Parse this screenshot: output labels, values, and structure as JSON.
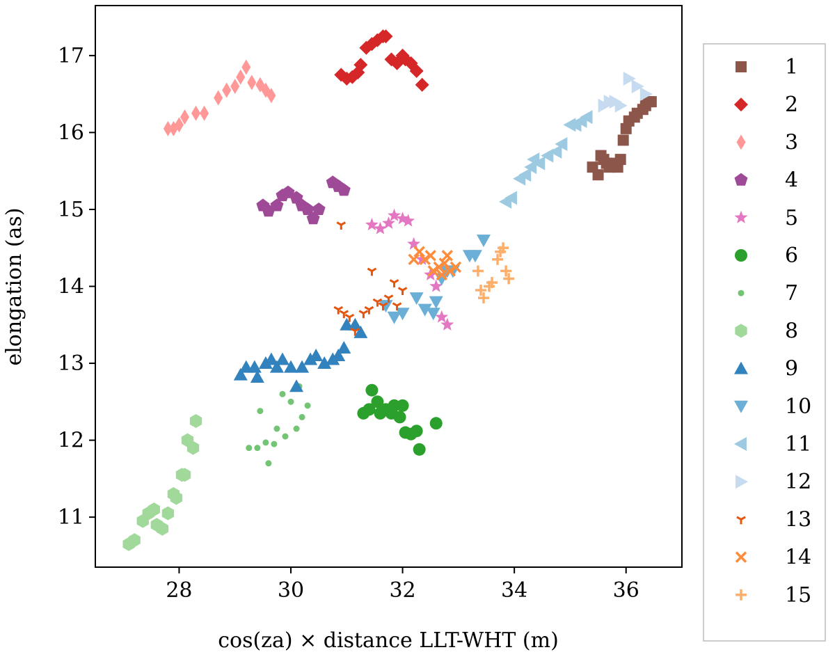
{
  "chart_data": {
    "type": "scatter",
    "title": "",
    "xlabel": "cos(za) × distance LLT-WHT (m)",
    "ylabel": "elongation (as)",
    "xlim": [
      26.5,
      37.0
    ],
    "ylim": [
      10.35,
      17.65
    ],
    "xticks": [
      "28",
      "30",
      "32",
      "34",
      "36"
    ],
    "yticks": [
      "11",
      "12",
      "13",
      "14",
      "15",
      "16",
      "17"
    ],
    "legend_position": "right-outside",
    "series": [
      {
        "name": "1",
        "marker": "square",
        "color": "#8c564b",
        "points": [
          [
            35.4,
            15.55
          ],
          [
            35.5,
            15.45
          ],
          [
            35.55,
            15.7
          ],
          [
            35.6,
            15.65
          ],
          [
            35.65,
            15.6
          ],
          [
            35.7,
            15.55
          ],
          [
            35.8,
            15.6
          ],
          [
            35.85,
            15.55
          ],
          [
            35.9,
            15.65
          ],
          [
            35.95,
            15.9
          ],
          [
            36.0,
            16.05
          ],
          [
            36.05,
            16.15
          ],
          [
            36.15,
            16.2
          ],
          [
            36.2,
            16.25
          ],
          [
            36.3,
            16.3
          ],
          [
            36.35,
            16.35
          ],
          [
            36.4,
            16.4
          ],
          [
            36.45,
            16.4
          ]
        ]
      },
      {
        "name": "2",
        "marker": "diamond",
        "color": "#d62728",
        "points": [
          [
            30.9,
            16.75
          ],
          [
            31.0,
            16.7
          ],
          [
            31.1,
            16.72
          ],
          [
            31.2,
            16.78
          ],
          [
            31.25,
            16.88
          ],
          [
            31.35,
            17.1
          ],
          [
            31.45,
            17.15
          ],
          [
            31.55,
            17.2
          ],
          [
            31.65,
            17.25
          ],
          [
            31.7,
            17.25
          ],
          [
            31.8,
            16.95
          ],
          [
            31.9,
            16.9
          ],
          [
            32.0,
            17.0
          ],
          [
            32.05,
            16.95
          ],
          [
            32.15,
            16.9
          ],
          [
            32.25,
            16.8
          ],
          [
            32.35,
            16.62
          ]
        ]
      },
      {
        "name": "3",
        "marker": "thin_diamond",
        "color": "#ff9896",
        "points": [
          [
            27.8,
            16.05
          ],
          [
            27.9,
            16.05
          ],
          [
            28.0,
            16.1
          ],
          [
            28.1,
            16.2
          ],
          [
            28.3,
            16.25
          ],
          [
            28.45,
            16.25
          ],
          [
            28.7,
            16.45
          ],
          [
            28.85,
            16.55
          ],
          [
            29.0,
            16.6
          ],
          [
            29.1,
            16.72
          ],
          [
            29.2,
            16.85
          ],
          [
            29.3,
            16.65
          ],
          [
            29.45,
            16.62
          ],
          [
            29.55,
            16.55
          ],
          [
            29.65,
            16.48
          ]
        ]
      },
      {
        "name": "4",
        "marker": "pentagon",
        "color": "#9e4a96",
        "points": [
          [
            29.5,
            15.05
          ],
          [
            29.6,
            14.98
          ],
          [
            29.75,
            15.05
          ],
          [
            29.85,
            15.18
          ],
          [
            29.95,
            15.22
          ],
          [
            30.1,
            15.15
          ],
          [
            30.2,
            15.05
          ],
          [
            30.3,
            15.0
          ],
          [
            30.4,
            14.88
          ],
          [
            30.5,
            15.0
          ],
          [
            30.75,
            15.35
          ],
          [
            30.85,
            15.3
          ],
          [
            30.95,
            15.25
          ]
        ]
      },
      {
        "name": "5",
        "marker": "star",
        "color": "#e377c2",
        "points": [
          [
            31.45,
            14.8
          ],
          [
            31.6,
            14.75
          ],
          [
            31.75,
            14.82
          ],
          [
            31.85,
            14.92
          ],
          [
            32.0,
            14.88
          ],
          [
            32.1,
            14.85
          ],
          [
            32.2,
            14.55
          ],
          [
            32.35,
            14.35
          ],
          [
            32.5,
            14.15
          ],
          [
            32.6,
            14.0
          ],
          [
            32.7,
            13.6
          ],
          [
            32.8,
            13.5
          ]
        ]
      },
      {
        "name": "6",
        "marker": "circle",
        "color": "#2ca02c",
        "points": [
          [
            31.3,
            12.35
          ],
          [
            31.4,
            12.4
          ],
          [
            31.45,
            12.65
          ],
          [
            31.55,
            12.5
          ],
          [
            31.6,
            12.35
          ],
          [
            31.7,
            12.4
          ],
          [
            31.8,
            12.35
          ],
          [
            31.85,
            12.45
          ],
          [
            31.95,
            12.3
          ],
          [
            32.0,
            12.45
          ],
          [
            32.05,
            12.1
          ],
          [
            32.15,
            12.08
          ],
          [
            32.25,
            12.12
          ],
          [
            32.3,
            11.88
          ],
          [
            32.6,
            12.22
          ]
        ]
      },
      {
        "name": "7",
        "marker": "point",
        "color": "#74c476",
        "points": [
          [
            29.25,
            11.9
          ],
          [
            29.4,
            11.9
          ],
          [
            29.45,
            12.38
          ],
          [
            29.55,
            11.97
          ],
          [
            29.6,
            11.7
          ],
          [
            29.7,
            11.95
          ],
          [
            29.75,
            12.15
          ],
          [
            29.85,
            12.6
          ],
          [
            29.9,
            12.05
          ],
          [
            30.0,
            12.5
          ],
          [
            30.1,
            12.15
          ],
          [
            30.15,
            12.7
          ],
          [
            30.2,
            12.3
          ],
          [
            30.3,
            12.45
          ]
        ]
      },
      {
        "name": "8",
        "marker": "hexagon",
        "color": "#a1d99b",
        "points": [
          [
            27.1,
            10.65
          ],
          [
            27.2,
            10.7
          ],
          [
            27.35,
            10.95
          ],
          [
            27.45,
            11.05
          ],
          [
            27.55,
            11.1
          ],
          [
            27.6,
            10.9
          ],
          [
            27.7,
            10.85
          ],
          [
            27.8,
            11.05
          ],
          [
            27.9,
            11.3
          ],
          [
            27.95,
            11.25
          ],
          [
            28.05,
            11.55
          ],
          [
            28.1,
            11.55
          ],
          [
            28.15,
            12.0
          ],
          [
            28.25,
            11.9
          ],
          [
            28.3,
            12.25
          ]
        ]
      },
      {
        "name": "9",
        "marker": "triangle_up",
        "color": "#3182bd",
        "points": [
          [
            29.1,
            12.85
          ],
          [
            29.2,
            12.95
          ],
          [
            29.35,
            12.95
          ],
          [
            29.4,
            12.82
          ],
          [
            29.55,
            13.0
          ],
          [
            29.65,
            13.05
          ],
          [
            29.75,
            12.95
          ],
          [
            29.85,
            13.05
          ],
          [
            30.0,
            12.95
          ],
          [
            30.1,
            12.7
          ],
          [
            30.2,
            12.95
          ],
          [
            30.35,
            13.05
          ],
          [
            30.45,
            13.1
          ],
          [
            30.6,
            13.0
          ],
          [
            30.75,
            13.05
          ],
          [
            30.85,
            13.1
          ],
          [
            30.95,
            13.2
          ],
          [
            31.0,
            13.5
          ],
          [
            31.15,
            13.5
          ],
          [
            31.25,
            13.4
          ]
        ]
      },
      {
        "name": "10",
        "marker": "triangle_down",
        "color": "#6baed6",
        "points": [
          [
            31.7,
            13.75
          ],
          [
            31.85,
            13.6
          ],
          [
            32.0,
            13.65
          ],
          [
            32.25,
            13.85
          ],
          [
            32.4,
            13.7
          ],
          [
            32.55,
            13.65
          ],
          [
            32.6,
            13.8
          ],
          [
            32.7,
            14.1
          ],
          [
            32.8,
            14.2
          ],
          [
            32.9,
            14.2
          ],
          [
            33.2,
            14.4
          ],
          [
            33.3,
            14.4
          ],
          [
            33.45,
            14.6
          ]
        ]
      },
      {
        "name": "11",
        "marker": "triangle_left",
        "color": "#9ecae1",
        "points": [
          [
            33.85,
            15.1
          ],
          [
            33.95,
            15.15
          ],
          [
            34.1,
            15.4
          ],
          [
            34.2,
            15.45
          ],
          [
            34.3,
            15.55
          ],
          [
            34.35,
            15.65
          ],
          [
            34.45,
            15.6
          ],
          [
            34.6,
            15.7
          ],
          [
            34.75,
            15.75
          ],
          [
            34.85,
            15.85
          ],
          [
            35.0,
            16.1
          ],
          [
            35.1,
            16.1
          ],
          [
            35.2,
            16.15
          ],
          [
            35.3,
            16.2
          ]
        ]
      },
      {
        "name": "12",
        "marker": "triangle_right",
        "color": "#c6dbef",
        "points": [
          [
            35.6,
            16.35
          ],
          [
            35.7,
            16.4
          ],
          [
            35.8,
            16.4
          ],
          [
            35.9,
            16.35
          ],
          [
            36.05,
            16.7
          ],
          [
            36.2,
            16.6
          ],
          [
            36.35,
            16.5
          ]
        ]
      },
      {
        "name": "13",
        "marker": "tri_down",
        "color": "#e6550d",
        "points": [
          [
            30.9,
            14.8
          ],
          [
            30.85,
            13.7
          ],
          [
            30.95,
            13.65
          ],
          [
            31.05,
            13.6
          ],
          [
            31.15,
            13.42
          ],
          [
            31.3,
            13.65
          ],
          [
            31.4,
            13.7
          ],
          [
            31.45,
            14.2
          ],
          [
            31.55,
            13.8
          ],
          [
            31.65,
            13.75
          ],
          [
            31.75,
            13.85
          ],
          [
            31.85,
            14.05
          ],
          [
            31.9,
            13.75
          ],
          [
            32.0,
            13.95
          ]
        ]
      },
      {
        "name": "14",
        "marker": "x",
        "color": "#fd8d3c",
        "points": [
          [
            32.2,
            14.35
          ],
          [
            32.3,
            14.45
          ],
          [
            32.4,
            14.35
          ],
          [
            32.5,
            14.4
          ],
          [
            32.55,
            14.2
          ],
          [
            32.65,
            14.25
          ],
          [
            32.7,
            14.15
          ],
          [
            32.75,
            14.3
          ],
          [
            32.85,
            14.2
          ],
          [
            32.95,
            14.25
          ],
          [
            32.8,
            14.4
          ]
        ]
      },
      {
        "name": "15",
        "marker": "plus",
        "color": "#fdae6b",
        "points": [
          [
            33.35,
            14.2
          ],
          [
            33.4,
            13.95
          ],
          [
            33.45,
            13.85
          ],
          [
            33.55,
            14.0
          ],
          [
            33.6,
            14.05
          ],
          [
            33.7,
            14.35
          ],
          [
            33.75,
            14.45
          ],
          [
            33.8,
            14.5
          ],
          [
            33.85,
            14.2
          ],
          [
            33.9,
            14.1
          ]
        ]
      }
    ]
  }
}
